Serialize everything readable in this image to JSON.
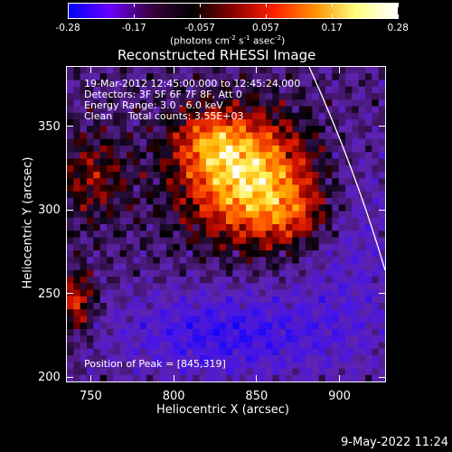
{
  "colorbar": {
    "ticks": [
      "-0.28",
      "-0.17",
      "-0.057",
      "0.057",
      "0.17",
      "0.28"
    ],
    "units_main": "(photons cm",
    "units_exp1": "-2",
    "units_mid1": " s",
    "units_exp2": "-1",
    "units_mid2": " asec",
    "units_exp3": "-2",
    "units_end": ")",
    "colors": [
      "#0000ff",
      "#6a00ff",
      "#3a0040",
      "#000000",
      "#8a0000",
      "#ff2000",
      "#ff9000",
      "#ffff80",
      "#ffffff"
    ]
  },
  "title": "Reconstructed RHESSI Image",
  "annotations": {
    "line1": "19-Mar-2012 12:45:00.000 to 12:45:24.000",
    "line2": "Detectors: 3F 5F 6F 7F 8F, Att 0",
    "line3": "Energy Range: 3.0 - 6.0 keV",
    "line4": "Clean     Total counts: 3.55E+03",
    "peak": "Position of Peak = [845,319]"
  },
  "axes": {
    "xlabel": "Heliocentric X (arcsec)",
    "ylabel": "Heliocentric Y (arcsec)",
    "xlim": [
      735,
      928
    ],
    "ylim": [
      197,
      386
    ],
    "xticks": [
      "750",
      "800",
      "850",
      "900"
    ],
    "yticks": [
      "200",
      "250",
      "300",
      "350"
    ],
    "xtick_values": [
      750,
      800,
      850,
      900
    ],
    "ytick_values": [
      200,
      250,
      300,
      350
    ]
  },
  "image": {
    "peak": [
      845,
      319
    ]
  },
  "footer": {
    "timestamp": "9-May-2022 11:24"
  }
}
